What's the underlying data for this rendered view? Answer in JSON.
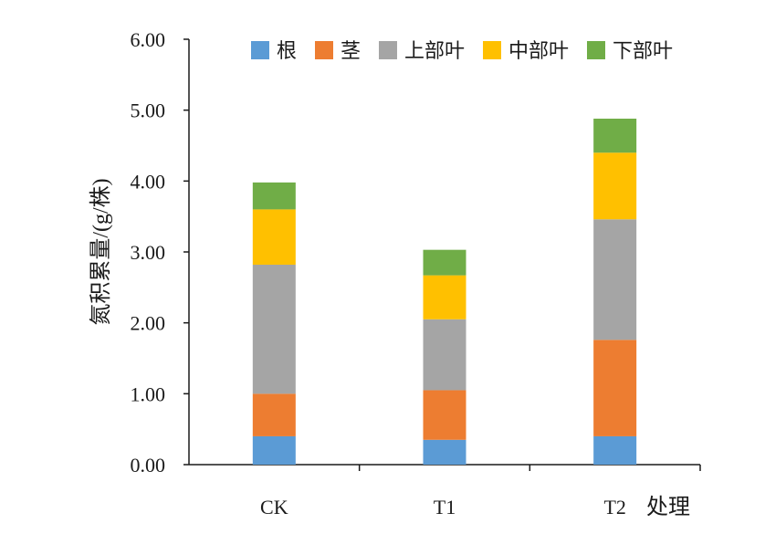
{
  "chart_data": {
    "type": "bar",
    "stacked": true,
    "title": "",
    "xlabel": "处理",
    "ylabel": "氮积累量/(g/株)",
    "ylim": [
      0,
      6
    ],
    "yticks": [
      "0.00",
      "1.00",
      "2.00",
      "3.00",
      "4.00",
      "5.00",
      "6.00"
    ],
    "categories": [
      "CK",
      "T1",
      "T2"
    ],
    "legend_position": "top",
    "series": [
      {
        "name": "根",
        "color": "#5b9bd5",
        "values": [
          0.4,
          0.35,
          0.4
        ]
      },
      {
        "name": "茎",
        "color": "#ed7d31",
        "values": [
          0.6,
          0.7,
          1.36
        ]
      },
      {
        "name": "上部叶",
        "color": "#a5a5a5",
        "values": [
          1.82,
          1.0,
          1.7
        ]
      },
      {
        "name": "中部叶",
        "color": "#ffc000",
        "values": [
          0.78,
          0.62,
          0.94
        ]
      },
      {
        "name": "下部叶",
        "color": "#70ad47",
        "values": [
          0.38,
          0.36,
          0.48
        ]
      }
    ]
  }
}
